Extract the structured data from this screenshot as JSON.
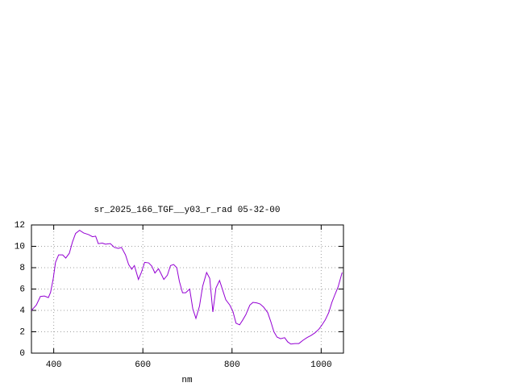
{
  "chart_data": {
    "type": "line",
    "title": "sr_2025_166_TGF__y03_r_rad 05-32-00",
    "x_label": "nm",
    "xlim": [
      350,
      1050
    ],
    "ylim": [
      0,
      12
    ],
    "xticks": [
      400,
      600,
      800,
      1000
    ],
    "yticks": [
      0,
      2,
      4,
      6,
      8,
      10,
      12
    ],
    "grid": true,
    "series": [
      {
        "color": "#9400d3",
        "x": [
          350,
          361,
          370,
          379,
          388,
          393,
          399,
          404,
          411,
          420,
          427,
          435,
          442,
          449,
          458,
          467,
          478,
          487,
          494,
          500,
          509,
          516,
          527,
          536,
          545,
          552,
          561,
          568,
          575,
          581,
          590,
          597,
          604,
          613,
          620,
          627,
          635,
          640,
          647,
          655,
          662,
          669,
          676,
          682,
          689,
          696,
          705,
          712,
          719,
          727,
          734,
          743,
          750,
          757,
          764,
          772,
          779,
          786,
          795,
          802,
          809,
          817,
          824,
          831,
          840,
          847,
          856,
          863,
          871,
          880,
          887,
          894,
          901,
          909,
          918,
          925,
          932,
          941,
          950,
          959,
          968,
          977,
          986,
          995,
          1002,
          1009,
          1017,
          1024,
          1031,
          1038,
          1047
        ],
        "values": [
          4.0,
          4.5,
          5.3,
          5.35,
          5.2,
          5.7,
          7.0,
          8.5,
          9.2,
          9.2,
          8.9,
          9.35,
          10.4,
          11.2,
          11.5,
          11.25,
          11.1,
          10.9,
          10.95,
          10.25,
          10.3,
          10.2,
          10.25,
          9.9,
          9.8,
          9.9,
          9.2,
          8.3,
          7.85,
          8.2,
          6.9,
          7.6,
          8.5,
          8.45,
          8.15,
          7.5,
          7.9,
          7.5,
          6.9,
          7.3,
          8.2,
          8.3,
          8.0,
          6.7,
          5.65,
          5.65,
          6.0,
          4.15,
          3.25,
          4.4,
          6.25,
          7.55,
          7.0,
          3.85,
          6.1,
          6.8,
          5.9,
          5.0,
          4.5,
          3.9,
          2.8,
          2.65,
          3.1,
          3.6,
          4.5,
          4.75,
          4.7,
          4.6,
          4.3,
          3.8,
          2.95,
          2.0,
          1.5,
          1.35,
          1.45,
          1.05,
          0.85,
          0.9,
          0.9,
          1.2,
          1.45,
          1.65,
          1.9,
          2.25,
          2.65,
          3.1,
          3.8,
          4.75,
          5.5,
          6.2,
          7.55
        ]
      }
    ]
  }
}
